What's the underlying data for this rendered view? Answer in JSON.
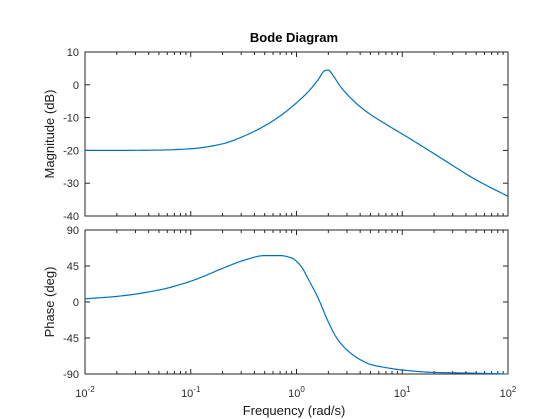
{
  "chart_data": {
    "type": "line",
    "title": "Bode Diagram",
    "xlabel": "Frequency  (rad/s)",
    "x_scale": "log",
    "xlim": [
      0.01,
      100
    ],
    "x_ticks": [
      {
        "base": "10",
        "exp": "-2"
      },
      {
        "base": "10",
        "exp": "-1"
      },
      {
        "base": "10",
        "exp": "0"
      },
      {
        "base": "10",
        "exp": "1"
      },
      {
        "base": "10",
        "exp": "2"
      }
    ],
    "line_color": "#0072bd",
    "subplots": [
      {
        "ylabel": "Magnitude (dB)",
        "ylim": [
          -40,
          10
        ],
        "yticks": [
          "10",
          "0",
          "-10",
          "-20",
          "-30",
          "-40"
        ],
        "series": [
          {
            "x": [
              0.01,
              0.02,
              0.05,
              0.1,
              0.2,
              0.3,
              0.5,
              0.7,
              1.0,
              1.3,
              1.6,
              1.85,
              2.0,
              2.2,
              2.6,
              3.2,
              4.5,
              7,
              10,
              20,
              50,
              100
            ],
            "y": [
              -20,
              -20,
              -19.9,
              -19.5,
              -18,
              -16,
              -12.5,
              -9.5,
              -5.5,
              -2,
              1.5,
              4.3,
              4.5,
              3.0,
              -0.5,
              -3.8,
              -8,
              -12,
              -15,
              -21,
              -29,
              -34
            ]
          }
        ]
      },
      {
        "ylabel": "Phase (deg)",
        "ylim": [
          -90,
          90
        ],
        "yticks": [
          "90",
          "45",
          "0",
          "-45",
          "-90"
        ],
        "series": [
          {
            "x": [
              0.01,
              0.02,
              0.05,
              0.1,
              0.2,
              0.3,
              0.5,
              0.7,
              0.9,
              1.1,
              1.3,
              1.6,
              2.0,
              2.4,
              3.0,
              4.0,
              5.0,
              7,
              10,
              20,
              50,
              100
            ],
            "y": [
              4,
              7,
              15,
              26,
              42,
              51,
              58,
              58,
              55,
              45,
              28,
              5,
              -25,
              -45,
              -60,
              -72,
              -78,
              -82,
              -85,
              -88,
              -89,
              -90
            ]
          }
        ]
      }
    ]
  }
}
